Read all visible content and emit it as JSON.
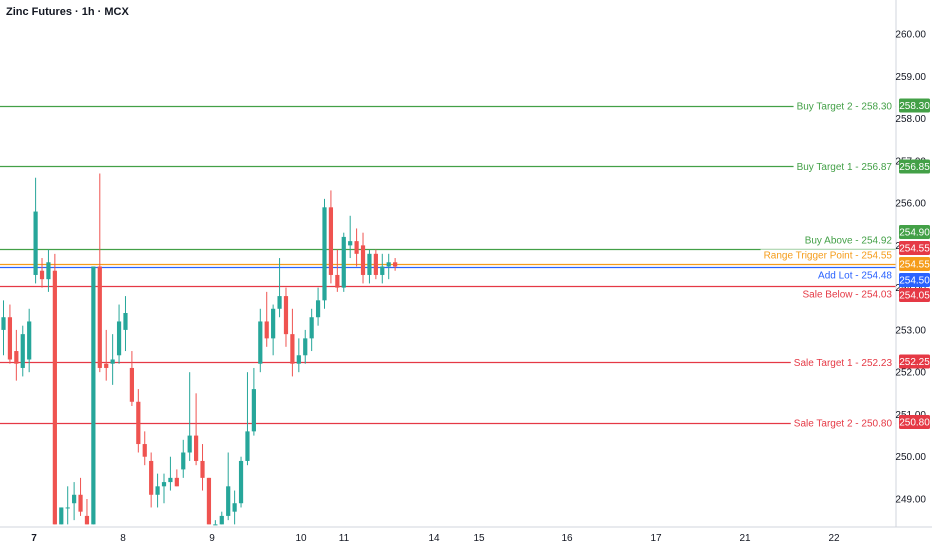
{
  "chart_data": {
    "type": "candlestick",
    "title": "Zinc Futures · 1h · MCX",
    "ylim": [
      248.4,
      260.5
    ],
    "y_ticks": [
      "249.00",
      "250.00",
      "251.00",
      "252.00",
      "253.00",
      "254.00",
      "255.00",
      "256.00",
      "257.00",
      "258.00",
      "259.00",
      "260.00"
    ],
    "x_ticks": [
      "7",
      "8",
      "9",
      "10",
      "11",
      "14",
      "15",
      "16",
      "17",
      "21",
      "22"
    ],
    "levels": [
      {
        "label": "Buy Target 2 - 258.30",
        "value": 258.3,
        "badge": "258.30",
        "color": "#43a047"
      },
      {
        "label": "Buy Target 1 - 256.87",
        "value": 256.87,
        "badge": "256.85",
        "color": "#43a047"
      },
      {
        "label": "Buy Above - 254.92",
        "value": 254.92,
        "badge": "254.90",
        "color": "#43a047"
      },
      {
        "label": "Range Trigger Point - 254.55",
        "value": 254.55,
        "badge": "254.55",
        "color": "#f59c1a"
      },
      {
        "label": "Add Lot - 254.48",
        "value": 254.48,
        "badge": "254.50",
        "color": "#2962ff"
      },
      {
        "label": "Sale Below  - 254.03",
        "value": 254.03,
        "badge": "254.05",
        "color": "#e53945"
      },
      {
        "label": "Sale Target  1  - 252.23",
        "value": 252.23,
        "badge": "252.25",
        "color": "#e53945"
      },
      {
        "label": "Sale Target  2  - 250.80",
        "value": 250.8,
        "badge": "250.80",
        "color": "#e53945"
      }
    ],
    "price_badge": {
      "text": "254.55",
      "color": "#e53945"
    },
    "colors": {
      "up": "#26a69a",
      "down": "#ef5350",
      "axis": "#131722"
    },
    "candles": [
      {
        "o": 253.0,
        "h": 253.7,
        "l": 252.4,
        "c": 253.3
      },
      {
        "o": 253.3,
        "h": 253.6,
        "l": 252.2,
        "c": 252.3
      },
      {
        "o": 252.5,
        "h": 253.0,
        "l": 251.8,
        "c": 252.2
      },
      {
        "o": 252.1,
        "h": 253.1,
        "l": 251.9,
        "c": 252.9
      },
      {
        "o": 252.3,
        "h": 253.5,
        "l": 252.0,
        "c": 253.2
      },
      {
        "o": 254.3,
        "h": 256.6,
        "l": 254.1,
        "c": 255.8
      },
      {
        "o": 254.4,
        "h": 254.7,
        "l": 254.0,
        "c": 254.2
      },
      {
        "o": 254.2,
        "h": 254.9,
        "l": 253.9,
        "c": 254.6
      },
      {
        "o": 254.4,
        "h": 254.8,
        "l": 248.4,
        "c": 248.4
      },
      {
        "o": 248.4,
        "h": 248.8,
        "l": 248.4,
        "c": 248.8
      },
      {
        "o": 248.8,
        "h": 249.3,
        "l": 248.4,
        "c": 248.8
      },
      {
        "o": 248.9,
        "h": 249.4,
        "l": 248.5,
        "c": 249.1
      },
      {
        "o": 249.1,
        "h": 249.5,
        "l": 248.6,
        "c": 248.7
      },
      {
        "o": 248.6,
        "h": 249.0,
        "l": 248.4,
        "c": 248.4
      },
      {
        "o": 248.4,
        "h": 254.5,
        "l": 248.4,
        "c": 254.5
      },
      {
        "o": 254.5,
        "h": 256.7,
        "l": 252.0,
        "c": 252.1
      },
      {
        "o": 252.2,
        "h": 253.0,
        "l": 251.8,
        "c": 252.1
      },
      {
        "o": 252.2,
        "h": 252.9,
        "l": 251.7,
        "c": 252.3
      },
      {
        "o": 252.4,
        "h": 253.6,
        "l": 252.2,
        "c": 253.2
      },
      {
        "o": 253.0,
        "h": 253.8,
        "l": 252.5,
        "c": 253.4
      },
      {
        "o": 252.1,
        "h": 252.5,
        "l": 251.2,
        "c": 251.3
      },
      {
        "o": 251.3,
        "h": 251.6,
        "l": 250.1,
        "c": 250.3
      },
      {
        "o": 250.3,
        "h": 250.6,
        "l": 249.8,
        "c": 250.0
      },
      {
        "o": 249.9,
        "h": 250.1,
        "l": 248.8,
        "c": 249.1
      },
      {
        "o": 249.1,
        "h": 249.6,
        "l": 248.8,
        "c": 249.3
      },
      {
        "o": 249.3,
        "h": 249.6,
        "l": 248.9,
        "c": 249.4
      },
      {
        "o": 249.4,
        "h": 250.0,
        "l": 249.2,
        "c": 249.5
      },
      {
        "o": 249.5,
        "h": 249.7,
        "l": 249.3,
        "c": 249.3
      },
      {
        "o": 249.7,
        "h": 250.4,
        "l": 249.5,
        "c": 250.1
      },
      {
        "o": 250.1,
        "h": 252.0,
        "l": 249.9,
        "c": 250.5
      },
      {
        "o": 250.5,
        "h": 251.5,
        "l": 249.8,
        "c": 249.9
      },
      {
        "o": 249.9,
        "h": 250.3,
        "l": 249.2,
        "c": 249.5
      },
      {
        "o": 249.5,
        "h": 249.5,
        "l": 248.4,
        "c": 248.4
      },
      {
        "o": 248.4,
        "h": 248.5,
        "l": 248.4,
        "c": 248.4
      },
      {
        "o": 248.4,
        "h": 248.7,
        "l": 248.4,
        "c": 248.6
      },
      {
        "o": 248.6,
        "h": 250.1,
        "l": 248.5,
        "c": 249.3
      },
      {
        "o": 248.7,
        "h": 249.2,
        "l": 248.4,
        "c": 248.9
      },
      {
        "o": 248.9,
        "h": 250.0,
        "l": 248.8,
        "c": 249.9
      },
      {
        "o": 249.9,
        "h": 252.0,
        "l": 249.8,
        "c": 250.6
      },
      {
        "o": 250.6,
        "h": 252.1,
        "l": 250.5,
        "c": 251.6
      },
      {
        "o": 252.2,
        "h": 253.5,
        "l": 252.0,
        "c": 253.2
      },
      {
        "o": 253.2,
        "h": 253.9,
        "l": 252.6,
        "c": 252.8
      },
      {
        "o": 252.8,
        "h": 253.6,
        "l": 252.4,
        "c": 253.5
      },
      {
        "o": 253.5,
        "h": 254.7,
        "l": 253.3,
        "c": 253.8
      },
      {
        "o": 253.8,
        "h": 254.0,
        "l": 252.6,
        "c": 252.9
      },
      {
        "o": 252.9,
        "h": 253.5,
        "l": 251.9,
        "c": 252.2
      },
      {
        "o": 252.2,
        "h": 252.8,
        "l": 252.0,
        "c": 252.4
      },
      {
        "o": 252.4,
        "h": 253.0,
        "l": 252.2,
        "c": 252.8
      },
      {
        "o": 252.8,
        "h": 253.5,
        "l": 252.5,
        "c": 253.3
      },
      {
        "o": 253.3,
        "h": 254.0,
        "l": 253.1,
        "c": 253.7
      },
      {
        "o": 253.7,
        "h": 256.1,
        "l": 253.5,
        "c": 255.9
      },
      {
        "o": 255.9,
        "h": 256.3,
        "l": 254.1,
        "c": 254.3
      },
      {
        "o": 254.3,
        "h": 254.9,
        "l": 253.9,
        "c": 254.0
      },
      {
        "o": 254.0,
        "h": 255.3,
        "l": 253.9,
        "c": 255.2
      },
      {
        "o": 255.0,
        "h": 255.7,
        "l": 254.7,
        "c": 255.1
      },
      {
        "o": 255.1,
        "h": 255.4,
        "l": 254.5,
        "c": 254.8
      },
      {
        "o": 255.0,
        "h": 255.3,
        "l": 254.1,
        "c": 254.3
      },
      {
        "o": 254.3,
        "h": 254.9,
        "l": 254.1,
        "c": 254.8
      },
      {
        "o": 254.8,
        "h": 254.9,
        "l": 254.2,
        "c": 254.3
      },
      {
        "o": 254.3,
        "h": 254.8,
        "l": 254.1,
        "c": 254.5
      },
      {
        "o": 254.5,
        "h": 254.8,
        "l": 254.2,
        "c": 254.6
      },
      {
        "o": 254.6,
        "h": 254.7,
        "l": 254.4,
        "c": 254.5
      }
    ]
  }
}
